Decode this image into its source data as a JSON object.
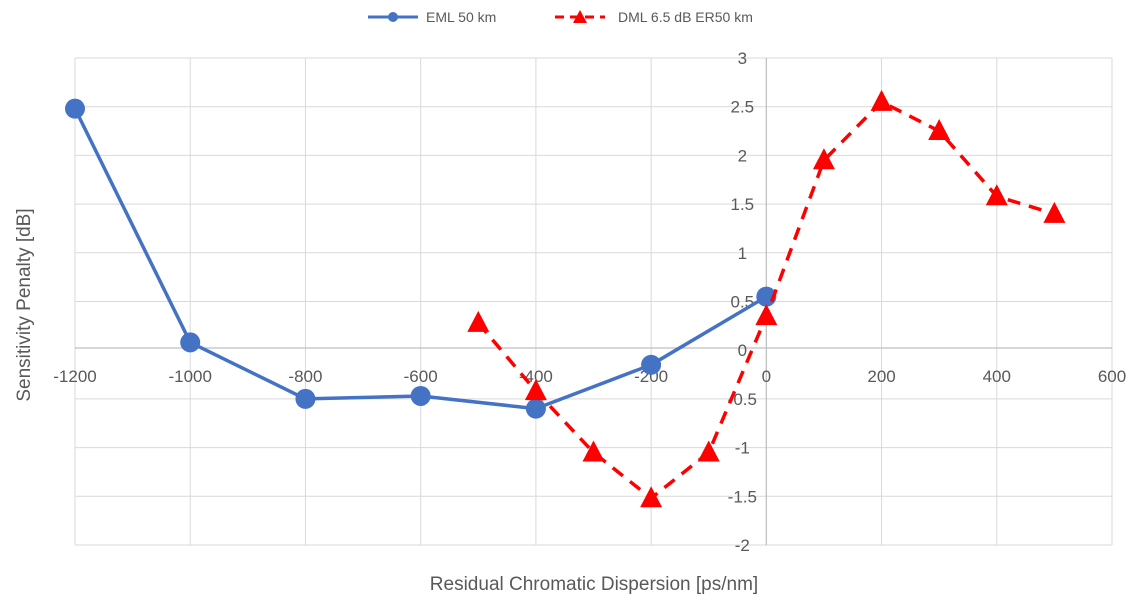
{
  "chart_data": {
    "type": "scatter",
    "title": "",
    "xlabel": "Residual Chromatic Dispersion [ps/nm]",
    "ylabel": "Sensitivity Penalty [dB]",
    "xlim": [
      -1200,
      600
    ],
    "ylim": [
      -2,
      3
    ],
    "xticks": [
      -1200,
      -1000,
      -800,
      -600,
      -400,
      -200,
      0,
      200,
      400,
      600
    ],
    "yticks": [
      -2,
      -1.5,
      -1,
      -0.5,
      0,
      0.5,
      1,
      1.5,
      2,
      2.5,
      3
    ],
    "grid": true,
    "legend_position": "top",
    "series": [
      {
        "name": "EML 50 km",
        "color": "#4472C4",
        "line": "solid",
        "marker": "circle",
        "x": [
          -1200,
          -1000,
          -800,
          -600,
          -400,
          -200,
          0
        ],
        "y": [
          2.48,
          0.08,
          -0.5,
          -0.47,
          -0.6,
          -0.15,
          0.55
        ]
      },
      {
        "name": "DML 6.5 dB ER50 km",
        "color": "#FF0000",
        "line": "dashed",
        "marker": "triangle",
        "x": [
          -500,
          -400,
          -300,
          -200,
          -100,
          0,
          100,
          200,
          300,
          400,
          500
        ],
        "y": [
          0.28,
          -0.42,
          -1.05,
          -1.52,
          -1.05,
          0.35,
          1.95,
          2.55,
          2.25,
          1.58,
          1.4
        ]
      }
    ]
  }
}
